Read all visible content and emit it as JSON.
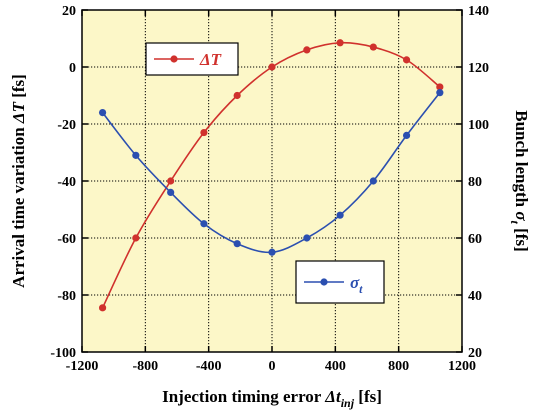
{
  "chart_data": {
    "type": "line",
    "title": "",
    "x_axis": {
      "label": "Injection timing error",
      "symbol": "Δt",
      "subscript": "inj",
      "unit": "[fs]",
      "range": [
        -1200,
        1200
      ],
      "ticks": [
        -1200,
        -800,
        -400,
        0,
        400,
        800,
        1200
      ]
    },
    "y_left": {
      "label": "Arrival time variation",
      "symbol": "ΔT",
      "unit": "[fs]",
      "range": [
        -100,
        20
      ],
      "ticks": [
        -100,
        -80,
        -60,
        -40,
        -20,
        0,
        20
      ]
    },
    "y_right": {
      "label": "Bunch length",
      "symbol": "σ",
      "subscript": "t",
      "unit": "[fs]",
      "range": [
        20,
        140
      ],
      "ticks": [
        20,
        40,
        60,
        80,
        100,
        120,
        140
      ]
    },
    "grid": true,
    "series": [
      {
        "name": "ΔT",
        "axis": "left",
        "color": "#d0312d",
        "x": [
          -1070,
          -860,
          -640,
          -430,
          -220,
          0,
          220,
          430,
          640,
          850,
          1060
        ],
        "y": [
          -84.5,
          -60,
          -40,
          -23,
          -10,
          0,
          6,
          8.5,
          7,
          2.5,
          -7
        ]
      },
      {
        "name": "σ",
        "name_subscript": "t",
        "axis": "right",
        "color": "#2b4fb0",
        "x": [
          -1070,
          -860,
          -640,
          -430,
          -220,
          0,
          220,
          430,
          640,
          850,
          1060
        ],
        "y": [
          104,
          89,
          76,
          65,
          58,
          55,
          60,
          68,
          80,
          96,
          111
        ]
      }
    ],
    "legends": [
      {
        "series": 0,
        "placement": "upper-left"
      },
      {
        "series": 1,
        "placement": "lower-right"
      }
    ]
  }
}
